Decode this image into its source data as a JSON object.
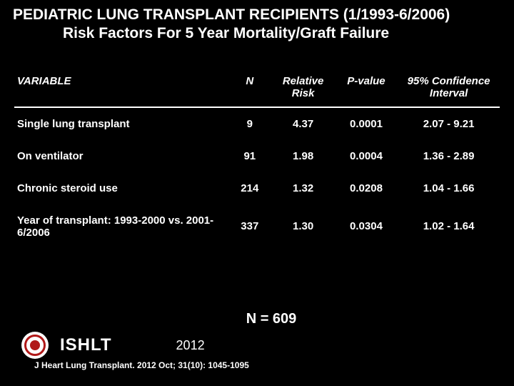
{
  "title": {
    "line1": "PEDIATRIC LUNG TRANSPLANT RECIPIENTS (1/1993-6/2006)",
    "line2": "Risk Factors For 5 Year Mortality/Graft Failure"
  },
  "table": {
    "columns": {
      "variable": "VARIABLE",
      "n": "N",
      "rr": "Relative Risk",
      "p": "P-value",
      "ci": "95% Confidence Interval"
    },
    "rows": [
      {
        "variable": "Single lung transplant",
        "n": "9",
        "rr": "4.37",
        "p": "0.0001",
        "ci": "2.07 - 9.21"
      },
      {
        "variable": "On ventilator",
        "n": "91",
        "rr": "1.98",
        "p": "0.0004",
        "ci": "1.36 - 2.89"
      },
      {
        "variable": "Chronic steroid use",
        "n": "214",
        "rr": "1.32",
        "p": "0.0208",
        "ci": "1.04 - 1.66"
      },
      {
        "variable": "Year of transplant: 1993-2000 vs. 2001-6/2006",
        "n": "337",
        "rr": "1.30",
        "p": "0.0304",
        "ci": "1.02 - 1.64"
      }
    ]
  },
  "footer": {
    "n_total": "N = 609",
    "org": "ISHLT",
    "year": "2012",
    "citation": "J Heart Lung Transplant. 2012 Oct; 31(10): 1045-1095"
  },
  "style": {
    "background_color": "#000000",
    "text_color": "#ffffff",
    "title_fontsize": 21,
    "header_fontsize": 15,
    "cell_fontsize": 15,
    "n_total_fontsize": 20,
    "org_fontsize": 24,
    "year_fontsize": 18,
    "citation_fontsize": 12,
    "logo_colors": {
      "bg": "#ffffff",
      "accent": "#b01818"
    },
    "header_border_color": "#ffffff",
    "font_family": "Arial"
  }
}
